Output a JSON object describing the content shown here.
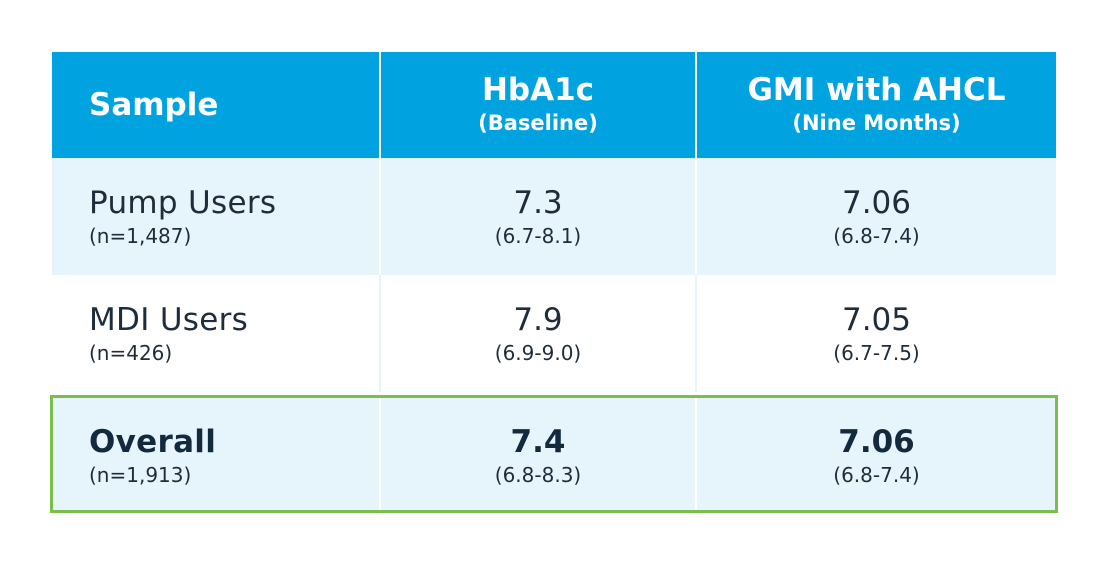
{
  "table": {
    "headers": [
      {
        "main": "Sample",
        "sub": ""
      },
      {
        "main": "HbA1c",
        "sub": "(Baseline)"
      },
      {
        "main": "GMI with AHCL",
        "sub": "(Nine Months)"
      }
    ],
    "rows": [
      {
        "label": "Pump Users",
        "n": "(n=1,487)",
        "hba1c": "7.3",
        "hba1c_range": "(6.7-8.1)",
        "gmi": "7.06",
        "gmi_range": "(6.8-7.4)"
      },
      {
        "label": "MDI Users",
        "n": "(n=426)",
        "hba1c": "7.9",
        "hba1c_range": "(6.9-9.0)",
        "gmi": "7.05",
        "gmi_range": "(6.7-7.5)"
      },
      {
        "label": "Overall",
        "n": "(n=1,913)",
        "hba1c": "7.4",
        "hba1c_range": "(6.8-8.3)",
        "gmi": "7.06",
        "gmi_range": "(6.8-7.4)"
      }
    ]
  },
  "colors": {
    "header_bg": "#00a3e0",
    "row_shade": "#e6f4fc",
    "highlight_border": "#7dbd4c",
    "text": "#1e2d3b"
  }
}
